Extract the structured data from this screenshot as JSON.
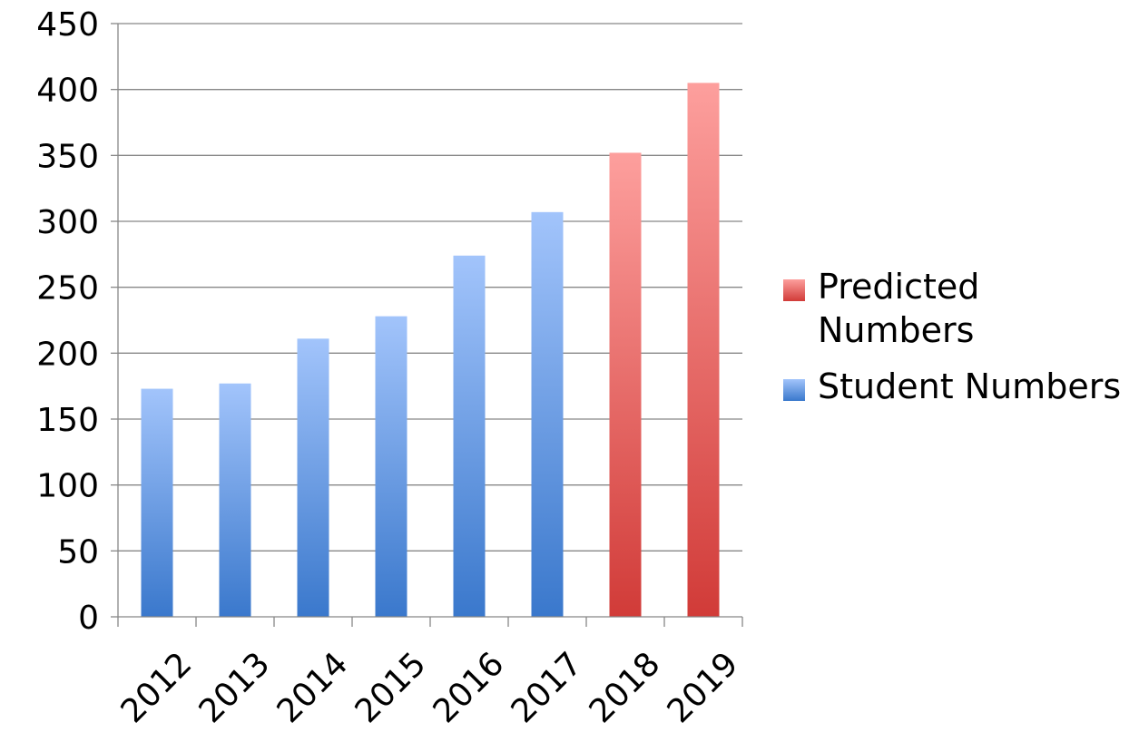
{
  "chart_data": {
    "type": "bar",
    "categories": [
      "2012",
      "2013",
      "2014",
      "2015",
      "2016",
      "2017",
      "2018",
      "2019"
    ],
    "series": [
      {
        "name": "Student Numbers",
        "values": [
          173,
          177,
          211,
          228,
          274,
          307,
          null,
          null
        ],
        "color": "#3f7fcf"
      },
      {
        "name": "Predicted Numbers",
        "values": [
          null,
          null,
          null,
          null,
          null,
          null,
          352,
          405
        ],
        "color": "#d8403e"
      }
    ],
    "title": "",
    "xlabel": "",
    "ylabel": "",
    "ylim": [
      0,
      450
    ],
    "yticks": [
      "0",
      "50",
      "100",
      "150",
      "200",
      "250",
      "300",
      "350",
      "400",
      "450"
    ],
    "grid": true,
    "legend_position": "right"
  }
}
